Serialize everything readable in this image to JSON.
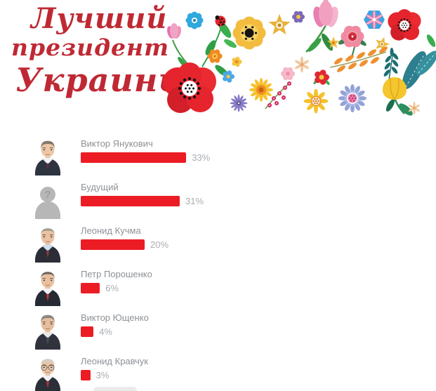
{
  "page": {
    "background": "#ffffff"
  },
  "header": {
    "title_lines": [
      "Лучший",
      "президент",
      "Украины"
    ],
    "title_color": "#bf2933",
    "decoration": "folk-floral-illustration"
  },
  "poll": {
    "bar_color": "#ec1c24",
    "items": [
      {
        "name": "Виктор Янукович",
        "percent": 33,
        "percent_label": "33%",
        "avatar": {
          "name": "yanukovych-portrait",
          "type": "photo",
          "hair": "#857868",
          "hairline": "full",
          "skin": "#ecc7a8",
          "suit": "#2e3340",
          "shirt": "#f2f2f2",
          "tie": "#5c3040",
          "glasses": false
        }
      },
      {
        "name": "Будущий",
        "percent": 31,
        "percent_label": "31%",
        "avatar": {
          "name": "unknown-silhouette",
          "type": "silhouette",
          "question_mark": "?",
          "body": "#b7b7b7",
          "mark": "#9e9e9e"
        }
      },
      {
        "name": "Леонид Кучма",
        "percent": 20,
        "percent_label": "20%",
        "avatar": {
          "name": "kuchma-portrait",
          "type": "photo",
          "hair": "#a29a90",
          "hairline": "receding",
          "skin": "#e9c2a4",
          "suit": "#2b2e36",
          "shirt": "#cfe0ee",
          "tie": "#8a3a44",
          "glasses": false
        }
      },
      {
        "name": "Петр Порошенко",
        "percent": 6,
        "percent_label": "6%",
        "avatar": {
          "name": "poroshenko-portrait",
          "type": "photo",
          "hair": "#6e6760",
          "hairline": "receding",
          "skin": "#e8c0a0",
          "suit": "#262a33",
          "shirt": "#f2f2f2",
          "tie": "#c03a3a",
          "glasses": false
        }
      },
      {
        "name": "Виктор Ющенко",
        "percent": 4,
        "percent_label": "4%",
        "avatar": {
          "name": "yushchenko-portrait",
          "type": "photo",
          "hair": "#8c867e",
          "hairline": "full",
          "skin": "#e6bd9e",
          "suit": "#30333c",
          "shirt": "#e8e8e8",
          "tie": "#4a4e5a",
          "glasses": false
        }
      },
      {
        "name": "Леонид Кравчук",
        "percent": 3,
        "percent_label": "3%",
        "avatar": {
          "name": "kravchuk-portrait",
          "type": "photo",
          "hair": "#d2cfca",
          "hairline": "receding",
          "skin": "#eac6a8",
          "suit": "#2b2f38",
          "shirt": "#f2f2f2",
          "tie": "#b03540",
          "glasses": true
        }
      }
    ]
  },
  "chart_data": {
    "type": "bar",
    "orientation": "horizontal",
    "title": "Лучший президент Украины",
    "categories": [
      "Виктор Янукович",
      "Будущий",
      "Леонид Кучма",
      "Петр Порошенко",
      "Виктор Ющенко",
      "Леонид Кравчук"
    ],
    "values": [
      33,
      31,
      20,
      6,
      4,
      3
    ],
    "unit": "%",
    "value_labels": [
      "33%",
      "31%",
      "20%",
      "6%",
      "4%",
      "3%"
    ],
    "bar_color": "#ec1c24",
    "grid": false,
    "legend": false
  }
}
